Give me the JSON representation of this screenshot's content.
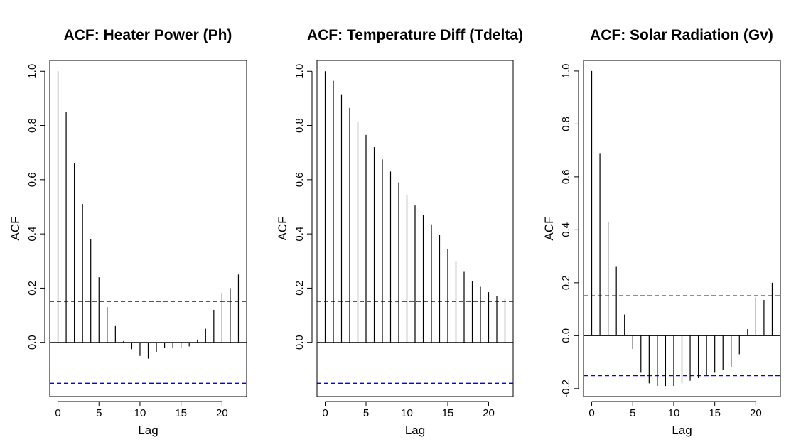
{
  "chart_data": [
    {
      "type": "bar",
      "title": "ACF: Heater Power (Ph)",
      "xlabel": "Lag",
      "ylabel": "ACF",
      "xlim": [
        -1,
        23
      ],
      "ylim": [
        -0.2,
        1.04
      ],
      "x_ticks": [
        0,
        5,
        10,
        15,
        20
      ],
      "y_ticks": [
        0.0,
        0.2,
        0.4,
        0.6,
        0.8,
        1.0
      ],
      "y_tick_labels": [
        "0.0",
        "0.2",
        "0.4",
        "0.6",
        "0.8",
        "1.0"
      ],
      "confidence_bound": 0.151,
      "grid": false,
      "lags": [
        0,
        1,
        2,
        3,
        4,
        5,
        6,
        7,
        8,
        9,
        10,
        11,
        12,
        13,
        14,
        15,
        16,
        17,
        18,
        19,
        20,
        21,
        22
      ],
      "values": [
        1.0,
        0.85,
        0.66,
        0.51,
        0.38,
        0.24,
        0.13,
        0.06,
        0.005,
        -0.025,
        -0.05,
        -0.06,
        -0.035,
        -0.02,
        -0.02,
        -0.02,
        -0.015,
        0.01,
        0.05,
        0.12,
        0.18,
        0.2,
        0.25
      ]
    },
    {
      "type": "bar",
      "title": "ACF: Temperature Diff (Tdelta)",
      "xlabel": "Lag",
      "ylabel": "ACF",
      "xlim": [
        -1,
        23
      ],
      "ylim": [
        -0.2,
        1.04
      ],
      "x_ticks": [
        0,
        5,
        10,
        15,
        20
      ],
      "y_ticks": [
        0.0,
        0.2,
        0.4,
        0.6,
        0.8,
        1.0
      ],
      "y_tick_labels": [
        "0.0",
        "0.2",
        "0.4",
        "0.6",
        "0.8",
        "1.0"
      ],
      "confidence_bound": 0.151,
      "grid": false,
      "lags": [
        0,
        1,
        2,
        3,
        4,
        5,
        6,
        7,
        8,
        9,
        10,
        11,
        12,
        13,
        14,
        15,
        16,
        17,
        18,
        19,
        20,
        21,
        22
      ],
      "values": [
        1.0,
        0.965,
        0.915,
        0.865,
        0.815,
        0.765,
        0.72,
        0.675,
        0.63,
        0.59,
        0.545,
        0.505,
        0.47,
        0.435,
        0.395,
        0.345,
        0.3,
        0.26,
        0.225,
        0.205,
        0.185,
        0.17,
        0.16
      ]
    },
    {
      "type": "bar",
      "title": "ACF: Solar Radiation (Gv)",
      "xlabel": "Lag",
      "ylabel": "ACF",
      "xlim": [
        -1,
        23
      ],
      "ylim": [
        -0.23,
        1.04
      ],
      "x_ticks": [
        0,
        5,
        10,
        15,
        20
      ],
      "y_ticks": [
        -0.2,
        0.0,
        0.2,
        0.4,
        0.6,
        0.8,
        1.0
      ],
      "y_tick_labels": [
        "-0.2",
        "0.0",
        "0.2",
        "0.4",
        "0.6",
        "0.8",
        "1.0"
      ],
      "confidence_bound": 0.151,
      "grid": false,
      "lags": [
        0,
        1,
        2,
        3,
        4,
        5,
        6,
        7,
        8,
        9,
        10,
        11,
        12,
        13,
        14,
        15,
        16,
        17,
        18,
        19,
        20,
        21,
        22
      ],
      "values": [
        1.0,
        0.69,
        0.43,
        0.26,
        0.08,
        -0.05,
        -0.14,
        -0.18,
        -0.19,
        -0.19,
        -0.19,
        -0.18,
        -0.17,
        -0.16,
        -0.15,
        -0.14,
        -0.13,
        -0.12,
        -0.07,
        0.025,
        0.145,
        0.135,
        0.2
      ]
    }
  ],
  "colors": {
    "spike": "#000000",
    "confidence_band": "#0000ff",
    "frame": "#000000"
  }
}
